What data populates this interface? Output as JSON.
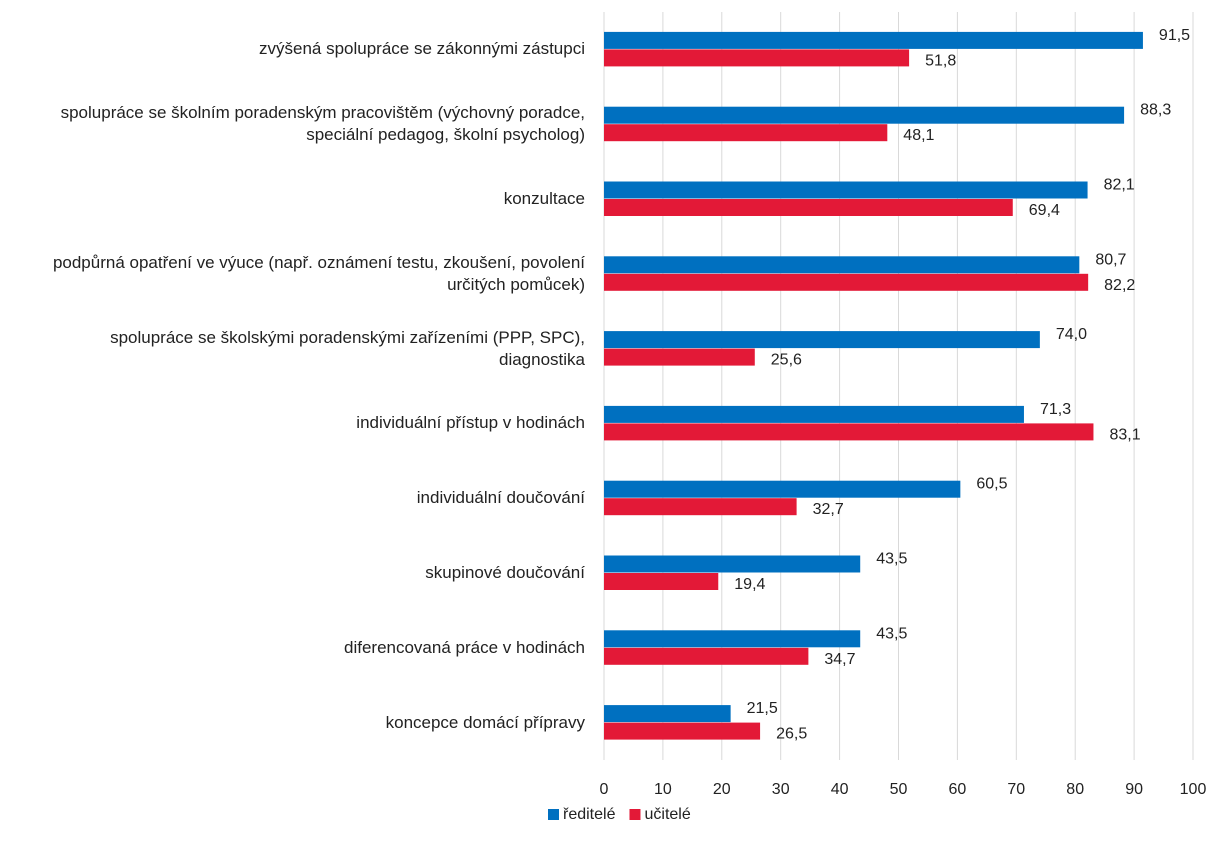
{
  "chart_data": {
    "type": "barh",
    "categories": [
      "zvýšená spolupráce se zákonnými zástupci",
      "spolupráce se školním poradenským pracovištěm (výchovný poradce, speciální pedagog, školní psycholog)",
      "konzultace",
      "podpůrná opatření ve výuce (např. oznámení testu, zkoušení, povolení určitých pomůcek)",
      "spolupráce se školskými poradenskými zařízeními (PPP, SPC), diagnostika",
      "individuální přístup v hodinách",
      "individuální doučování",
      "skupinové doučování",
      "diferencovaná práce v hodinách",
      "koncepce domácí přípravy"
    ],
    "series": [
      {
        "name": "ředitelé",
        "color": "#0070c0",
        "values": [
          91.5,
          88.3,
          82.1,
          80.7,
          74.0,
          71.3,
          60.5,
          43.5,
          43.5,
          21.5
        ],
        "value_labels": [
          "91,5",
          "88,3",
          "82,1",
          "80,7",
          "74,0",
          "71,3",
          "60,5",
          "43,5",
          "43,5",
          "21,5"
        ]
      },
      {
        "name": "učitelé",
        "color": "#e31937",
        "values": [
          51.8,
          48.1,
          69.4,
          82.2,
          25.6,
          83.1,
          32.7,
          19.4,
          34.7,
          26.5
        ],
        "value_labels": [
          "51,8",
          "48,1",
          "69,4",
          "82,2",
          "25,6",
          "83,1",
          "32,7",
          "19,4",
          "34,7",
          "26,5"
        ]
      }
    ],
    "xlim": [
      0,
      100
    ],
    "xticks": [
      0,
      10,
      20,
      30,
      40,
      50,
      60,
      70,
      80,
      90,
      100
    ],
    "grid": true,
    "legend": "bottom"
  }
}
